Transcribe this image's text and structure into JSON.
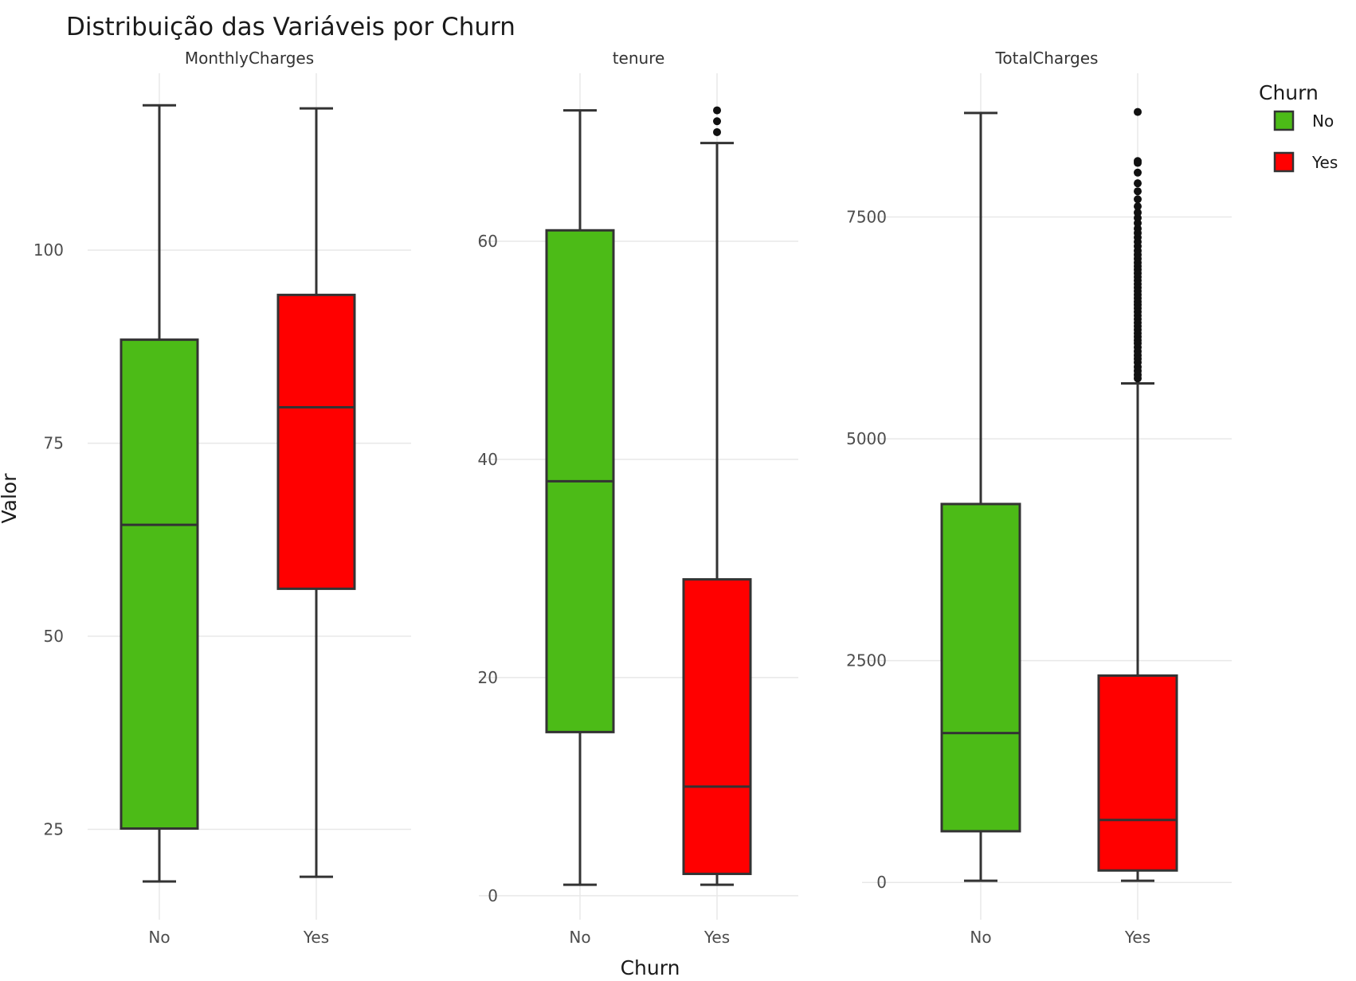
{
  "chart_data": {
    "type": "boxplot",
    "title": "Distribuição das Variáveis por Churn",
    "xlabel": "Churn",
    "ylabel": "Valor",
    "categories": [
      "No",
      "Yes"
    ],
    "grid": true,
    "legend": {
      "title": "Churn",
      "position": "right",
      "items": [
        {
          "label": "No",
          "color": "#4cbb17"
        },
        {
          "label": "Yes",
          "color": "#ff0000"
        }
      ]
    },
    "facets": [
      {
        "name": "MonthlyCharges",
        "ylim": [
          13.3,
          122.9
        ],
        "yticks": [
          25,
          50,
          75,
          100
        ],
        "ytick_labels": [
          "25",
          "50",
          "75",
          "100"
        ],
        "boxes": [
          {
            "category": "No",
            "whisker_low": 18.25,
            "q1": 25.1,
            "median": 64.43,
            "q3": 88.4,
            "whisker_high": 118.75,
            "outliers": []
          },
          {
            "category": "Yes",
            "whisker_low": 18.85,
            "q1": 56.15,
            "median": 79.65,
            "q3": 94.2,
            "whisker_high": 118.35,
            "outliers": []
          }
        ]
      },
      {
        "name": "tenure",
        "ylim": [
          -2.2,
          75.4
        ],
        "yticks": [
          0,
          20,
          40,
          60
        ],
        "ytick_labels": [
          "0",
          "20",
          "40",
          "60"
        ],
        "boxes": [
          {
            "category": "No",
            "whisker_low": 1,
            "q1": 15,
            "median": 38,
            "q3": 61,
            "whisker_high": 72,
            "outliers": []
          },
          {
            "category": "Yes",
            "whisker_low": 1,
            "q1": 2,
            "median": 10,
            "q3": 29,
            "whisker_high": 69,
            "outliers": [
              70,
              71,
              72
            ]
          }
        ]
      },
      {
        "name": "TotalCharges",
        "ylim": [
          -420,
          9120
        ],
        "yticks": [
          0,
          2500,
          5000,
          7500
        ],
        "ytick_labels": [
          "0",
          "2500",
          "5000",
          "7500"
        ],
        "boxes": [
          {
            "category": "No",
            "whisker_low": 18.8,
            "q1": 577,
            "median": 1683,
            "q3": 4265,
            "whisker_high": 8672,
            "outliers": []
          },
          {
            "category": "Yes",
            "whisker_low": 18.85,
            "q1": 134.5,
            "median": 703.55,
            "q3": 2331,
            "whisker_high": 5624,
            "outliers": [
              5680,
              5720,
              5765,
              5810,
              5860,
              5900,
              5940,
              5985,
              6030,
              6075,
              6110,
              6150,
              6190,
              6230,
              6270,
              6310,
              6350,
              6390,
              6430,
              6470,
              6510,
              6545,
              6585,
              6625,
              6665,
              6705,
              6745,
              6785,
              6825,
              6865,
              6905,
              6945,
              6985,
              7030,
              7075,
              7120,
              7170,
              7220,
              7270,
              7320,
              7370,
              7430,
              7490,
              7550,
              7620,
              7700,
              7790,
              7880,
              8000,
              8110,
              8130,
              8684
            ]
          }
        ]
      }
    ]
  }
}
